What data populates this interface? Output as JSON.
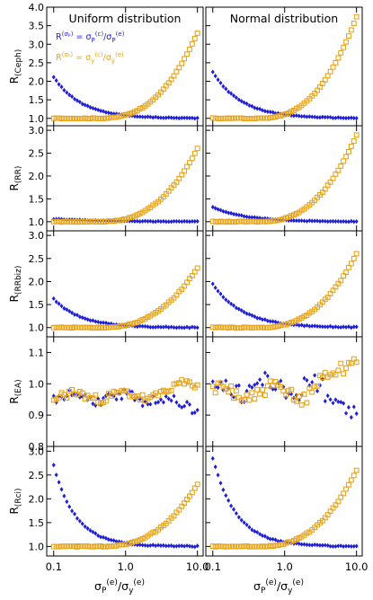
{
  "figure": {
    "col_titles": [
      "Uniform distribution",
      "Normal distribution"
    ],
    "legend": {
      "line1": "R(αₐ) = σP(c)/σP(e)",
      "line2": "R(σy) = σy(c)/σy(e)",
      "line1_parts": {
        "R": "R",
        "rsup": "(σₚ)",
        "eq": " = σ",
        "sub1": "P",
        "sup1": "(c)",
        "div": "/σ",
        "sub2": "P",
        "sup2": "(e)"
      },
      "line2_parts": {
        "R": "R",
        "rsup": "(σᵧ)",
        "eq": " = σ",
        "sub1": "y",
        "sup1": "(c)",
        "div": "/σ",
        "sub2": "y",
        "sup2": "(e)"
      }
    },
    "xlabel_parts": {
      "s": "σ",
      "sub1": "P",
      "sup1": "(e)",
      "div": "/σ",
      "sub2": "y",
      "sup2": "(e)"
    },
    "colors": {
      "blue": "#1f1fd6",
      "orange": "#e8a51c"
    }
  },
  "chart_data": [
    {
      "type": "scatter",
      "panel": "Ceph-Uniform",
      "ylabel": "R(Ceph)",
      "ylim": [
        0.8,
        4.0
      ],
      "xscale": "log",
      "xlim": [
        0.08,
        12
      ],
      "xticks": [
        "0.1",
        "1.0",
        "10.0"
      ],
      "yticks": [
        "1.0",
        "1.5",
        "2.0",
        "2.5",
        "3.0",
        "3.5",
        "4.0"
      ],
      "series": [
        {
          "name": "R(σP)",
          "marker": "diamond",
          "color": "#1f1fd6",
          "model": "decay",
          "A": 1.12,
          "k": 2.6,
          "noise": 0.01
        },
        {
          "name": "R(σy)",
          "marker": "square",
          "color": "#e8a51c",
          "model": "grow",
          "B": 2.3,
          "m": 1.6,
          "noise": 0.01
        }
      ]
    },
    {
      "type": "scatter",
      "panel": "Ceph-Normal",
      "ylabel": "",
      "ylim": [
        0.8,
        4.0
      ],
      "xscale": "log",
      "xlim": [
        0.08,
        12
      ],
      "xticks": [
        "0.1",
        "1.0",
        "10.0"
      ],
      "yticks": [],
      "series": [
        {
          "name": "R(σP)",
          "marker": "diamond",
          "color": "#1f1fd6",
          "model": "decay",
          "A": 1.25,
          "k": 2.5,
          "noise": 0.01
        },
        {
          "name": "R(σy)",
          "marker": "square",
          "color": "#e8a51c",
          "model": "grow",
          "B": 2.75,
          "m": 1.5,
          "noise": 0.01
        }
      ]
    },
    {
      "type": "scatter",
      "panel": "RR-Uniform",
      "ylabel": "R(RR)",
      "ylim": [
        0.8,
        3.1
      ],
      "xscale": "log",
      "xlim": [
        0.08,
        12
      ],
      "xticks": [
        "0.1",
        "1.0",
        "10.0"
      ],
      "yticks": [
        "1.0",
        "1.5",
        "2.0",
        "2.5",
        "3.0"
      ],
      "series": [
        {
          "name": "R(σP)",
          "marker": "diamond",
          "color": "#1f1fd6",
          "model": "decay",
          "A": 0.06,
          "k": 1.5,
          "noise": 0.006
        },
        {
          "name": "R(σy)",
          "marker": "square",
          "color": "#e8a51c",
          "model": "grow",
          "B": 1.6,
          "m": 1.6,
          "noise": 0.008
        }
      ]
    },
    {
      "type": "scatter",
      "panel": "RR-Normal",
      "ylabel": "",
      "ylim": [
        0.8,
        3.1
      ],
      "xscale": "log",
      "xlim": [
        0.08,
        12
      ],
      "xticks": [
        "0.1",
        "1.0",
        "10.0"
      ],
      "yticks": [],
      "series": [
        {
          "name": "R(σP)",
          "marker": "diamond",
          "color": "#1f1fd6",
          "model": "decay",
          "A": 0.32,
          "k": 2.2,
          "noise": 0.008
        },
        {
          "name": "R(σy)",
          "marker": "square",
          "color": "#e8a51c",
          "model": "grow",
          "B": 1.9,
          "m": 1.55,
          "noise": 0.008
        }
      ]
    },
    {
      "type": "scatter",
      "panel": "RRbiz-Uniform",
      "ylabel": "R(RRbiz)",
      "ylim": [
        0.8,
        3.1
      ],
      "xscale": "log",
      "xlim": [
        0.08,
        12
      ],
      "xticks": [
        "0.1",
        "1.0",
        "10.0"
      ],
      "yticks": [
        "1.0",
        "1.5",
        "2.0",
        "2.5",
        "3.0"
      ],
      "series": [
        {
          "name": "R(σP)",
          "marker": "diamond",
          "color": "#1f1fd6",
          "model": "decay",
          "A": 0.62,
          "k": 2.6,
          "noise": 0.01
        },
        {
          "name": "R(σy)",
          "marker": "square",
          "color": "#e8a51c",
          "model": "grow",
          "B": 1.3,
          "m": 1.6,
          "noise": 0.01
        }
      ]
    },
    {
      "type": "scatter",
      "panel": "RRbiz-Normal",
      "ylabel": "",
      "ylim": [
        0.8,
        3.1
      ],
      "xscale": "log",
      "xlim": [
        0.08,
        12
      ],
      "xticks": [
        "0.1",
        "1.0",
        "10.0"
      ],
      "yticks": [],
      "series": [
        {
          "name": "R(σP)",
          "marker": "diamond",
          "color": "#1f1fd6",
          "model": "decay",
          "A": 0.95,
          "k": 2.4,
          "noise": 0.01
        },
        {
          "name": "R(σy)",
          "marker": "square",
          "color": "#e8a51c",
          "model": "grow",
          "B": 1.6,
          "m": 1.55,
          "noise": 0.01
        }
      ]
    },
    {
      "type": "scatter",
      "panel": "EA-Uniform",
      "ylabel": "R(EA)",
      "ylim": [
        0.8,
        1.15
      ],
      "xscale": "log",
      "xlim": [
        0.08,
        12
      ],
      "xticks": [
        "0.1",
        "1.0",
        "10.0"
      ],
      "yticks": [
        "0.8",
        "0.9",
        "1.0",
        "1.1"
      ],
      "series": [
        {
          "name": "R(σP)",
          "marker": "diamond",
          "color": "#1f1fd6",
          "model": "noisy",
          "base": 0.955,
          "amp": 0.02,
          "tail": -0.03
        },
        {
          "name": "R(σy)",
          "marker": "square",
          "color": "#e8a51c",
          "model": "noisy",
          "base": 0.96,
          "amp": 0.018,
          "tail": 0.05
        }
      ]
    },
    {
      "type": "scatter",
      "panel": "EA-Normal",
      "ylabel": "",
      "ylim": [
        0.8,
        1.15
      ],
      "xscale": "log",
      "xlim": [
        0.08,
        12
      ],
      "xticks": [
        "0.1",
        "1.0",
        "10.0"
      ],
      "yticks": [],
      "series": [
        {
          "name": "R(σP)",
          "marker": "diamond",
          "color": "#1f1fd6",
          "model": "noisy",
          "base": 0.99,
          "amp": 0.04,
          "tail": -0.08
        },
        {
          "name": "R(σy)",
          "marker": "square",
          "color": "#e8a51c",
          "model": "noisy",
          "base": 0.97,
          "amp": 0.03,
          "tail": 0.13
        }
      ]
    },
    {
      "type": "scatter",
      "panel": "Rci-Uniform",
      "ylabel": "R(Rci)",
      "ylim": [
        0.8,
        3.1
      ],
      "xscale": "log",
      "xlim": [
        0.08,
        12
      ],
      "xticks": [
        "0.1",
        "1.0",
        "10.0"
      ],
      "yticks": [
        "1.0",
        "1.5",
        "2.0",
        "2.5",
        "3.0"
      ],
      "series": [
        {
          "name": "R(σP)",
          "marker": "diamond",
          "color": "#1f1fd6",
          "model": "decay",
          "A": 1.7,
          "k": 3.2,
          "noise": 0.012
        },
        {
          "name": "R(σy)",
          "marker": "square",
          "color": "#e8a51c",
          "model": "grow",
          "B": 1.3,
          "m": 1.6,
          "noise": 0.01
        }
      ]
    },
    {
      "type": "scatter",
      "panel": "Rci-Normal",
      "ylabel": "",
      "ylim": [
        0.8,
        3.1
      ],
      "xscale": "log",
      "xlim": [
        0.08,
        12
      ],
      "xticks": [
        "0.1",
        "1.0",
        "10.0"
      ],
      "yticks": [],
      "series": [
        {
          "name": "R(σP)",
          "marker": "diamond",
          "color": "#1f1fd6",
          "model": "decay",
          "A": 1.85,
          "k": 3.0,
          "noise": 0.012
        },
        {
          "name": "R(σy)",
          "marker": "square",
          "color": "#e8a51c",
          "model": "grow",
          "B": 1.6,
          "m": 1.55,
          "noise": 0.01
        }
      ]
    }
  ]
}
